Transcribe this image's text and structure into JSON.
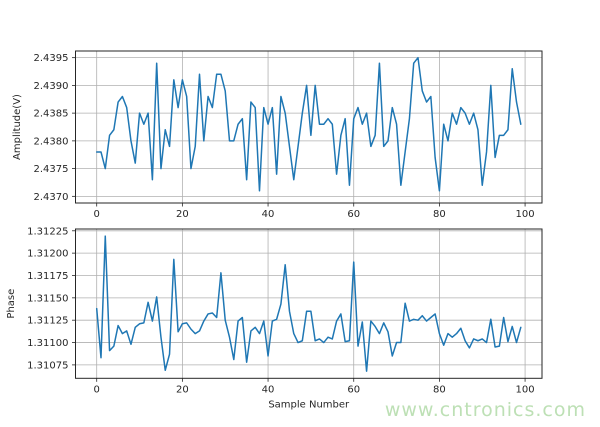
{
  "watermark": {
    "text": "www.cntronics.com",
    "color": "#bde0b5"
  },
  "colors": {
    "line": "#1f77b4",
    "grid": "#b0b0b0",
    "spine": "#262626",
    "tick_label": "#262626",
    "background": "#ffffff"
  },
  "chart_data": [
    {
      "type": "line",
      "title": "",
      "xlabel": "",
      "ylabel": "Amplitude(V)",
      "legend": null,
      "grid": true,
      "x_is_index": true,
      "xlim": [
        -4.95,
        103.95
      ],
      "ylim": [
        2.43688,
        2.43962
      ],
      "x_ticks": [
        0,
        20,
        40,
        60,
        80,
        100
      ],
      "x_tick_labels": [
        "0",
        "20",
        "40",
        "60",
        "80",
        "100"
      ],
      "y_ticks": [
        2.437,
        2.4375,
        2.438,
        2.4385,
        2.439,
        2.4395
      ],
      "y_tick_labels": [
        "2.4370",
        "2.4375",
        "2.4380",
        "2.4385",
        "2.4390",
        "2.4395"
      ],
      "values": [
        2.4378,
        2.4378,
        2.4375,
        2.4381,
        2.4382,
        2.4387,
        2.4388,
        2.4386,
        2.438,
        2.4376,
        2.4385,
        2.4383,
        2.4385,
        2.4373,
        2.4394,
        2.4375,
        2.4382,
        2.4379,
        2.4391,
        2.4386,
        2.4391,
        2.4388,
        2.4375,
        2.4379,
        2.4392,
        2.438,
        2.4388,
        2.4386,
        2.4392,
        2.4392,
        2.4389,
        2.438,
        2.438,
        2.4383,
        2.4384,
        2.4373,
        2.4387,
        2.4386,
        2.4371,
        2.4386,
        2.4383,
        2.4386,
        2.4374,
        2.4388,
        2.4385,
        2.4379,
        2.4373,
        2.4379,
        2.4385,
        2.439,
        2.4381,
        2.439,
        2.4383,
        2.4383,
        2.4384,
        2.4383,
        2.4374,
        2.4381,
        2.4384,
        2.4372,
        2.4384,
        2.4386,
        2.4383,
        2.4385,
        2.4379,
        2.4381,
        2.4394,
        2.4379,
        2.438,
        2.4386,
        2.4383,
        2.4372,
        2.4378,
        2.4384,
        2.4394,
        2.4395,
        2.4389,
        2.4387,
        2.4388,
        2.4377,
        2.4371,
        2.4383,
        2.438,
        2.4385,
        2.4383,
        2.4386,
        2.4385,
        2.4383,
        2.4385,
        2.4382,
        2.4372,
        2.4378,
        2.439,
        2.4377,
        2.4381,
        2.4381,
        2.4382,
        2.4393,
        2.4387,
        2.4383
      ]
    },
    {
      "type": "line",
      "title": "",
      "xlabel": "Sample Number",
      "ylabel": "Phase",
      "legend": null,
      "grid": true,
      "x_is_index": true,
      "xlim": [
        -4.95,
        103.95
      ],
      "ylim": [
        1.3106,
        1.31227
      ],
      "x_ticks": [
        0,
        20,
        40,
        60,
        80,
        100
      ],
      "x_tick_labels": [
        "0",
        "20",
        "40",
        "60",
        "80",
        "100"
      ],
      "y_ticks": [
        1.31075,
        1.311,
        1.31125,
        1.3115,
        1.31175,
        1.312,
        1.31225
      ],
      "y_tick_labels": [
        "1.31075",
        "1.31100",
        "1.31125",
        "1.31150",
        "1.31175",
        "1.31200",
        "1.31225"
      ],
      "values": [
        1.31138,
        1.31083,
        1.31219,
        1.31091,
        1.31096,
        1.31119,
        1.3111,
        1.31113,
        1.31098,
        1.31117,
        1.31121,
        1.31122,
        1.31145,
        1.31124,
        1.31151,
        1.31106,
        1.31069,
        1.31087,
        1.31193,
        1.31112,
        1.31121,
        1.31122,
        1.31115,
        1.3111,
        1.31113,
        1.31124,
        1.31132,
        1.31133,
        1.31128,
        1.31178,
        1.31125,
        1.31106,
        1.31081,
        1.31124,
        1.31128,
        1.31078,
        1.31113,
        1.31117,
        1.3111,
        1.31124,
        1.31085,
        1.31124,
        1.31126,
        1.31143,
        1.31187,
        1.31135,
        1.3111,
        1.311,
        1.31102,
        1.31135,
        1.31135,
        1.31102,
        1.31104,
        1.311,
        1.31106,
        1.31104,
        1.31124,
        1.31132,
        1.31101,
        1.31102,
        1.3119,
        1.31096,
        1.31123,
        1.31068,
        1.31124,
        1.31118,
        1.3111,
        1.31122,
        1.31112,
        1.31085,
        1.311,
        1.311,
        1.31144,
        1.31124,
        1.31126,
        1.31125,
        1.3113,
        1.31124,
        1.31128,
        1.31132,
        1.3111,
        1.31097,
        1.3111,
        1.31106,
        1.3111,
        1.31116,
        1.31102,
        1.31094,
        1.31104,
        1.31102,
        1.31104,
        1.311,
        1.31126,
        1.31095,
        1.31096,
        1.31128,
        1.31101,
        1.31118,
        1.311,
        1.31117
      ]
    }
  ]
}
